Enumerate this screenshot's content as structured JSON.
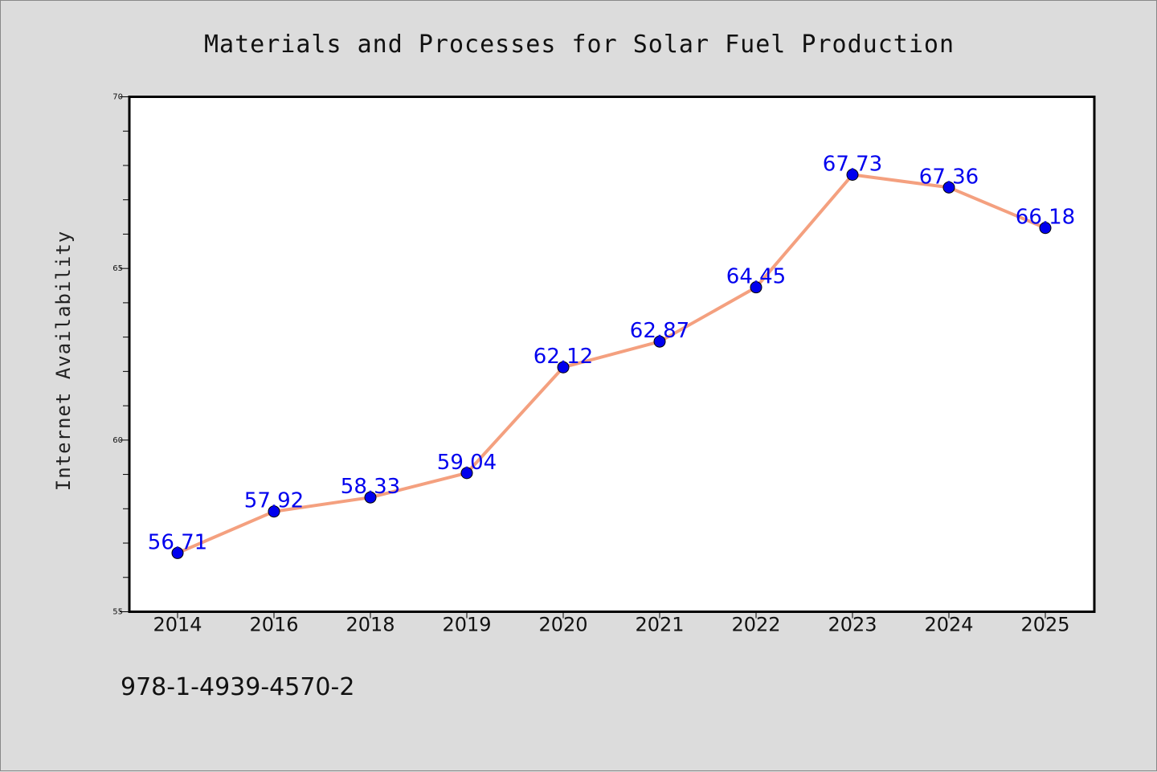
{
  "chart_data": {
    "type": "line",
    "title": "Materials and Processes for Solar Fuel Production",
    "xlabel": "",
    "ylabel": "Internet Availability",
    "categories": [
      "2014",
      "2016",
      "2018",
      "2019",
      "2020",
      "2021",
      "2022",
      "2023",
      "2024",
      "2025"
    ],
    "series": [
      {
        "values": [
          56.71,
          57.92,
          58.33,
          59.04,
          62.12,
          62.87,
          64.45,
          67.73,
          67.36,
          66.18
        ]
      }
    ],
    "data_labels": [
      "56.71",
      "57.92",
      "58.33",
      "59.04",
      "62.12",
      "62.87",
      "64.45",
      "67.73",
      "67.36",
      "66.18"
    ],
    "ylim": [
      55,
      70
    ],
    "y_major_ticks": [
      55,
      60,
      65,
      70
    ],
    "y_minor_step": 1,
    "grid": false,
    "colors": {
      "line": "#f4a07f",
      "marker": "#0000ee",
      "data_label": "#0000ee",
      "plot_background": "#ffffff",
      "figure_background": "#dcdcdc"
    }
  },
  "footer": {
    "isbn": "978-1-4939-4570-2"
  }
}
